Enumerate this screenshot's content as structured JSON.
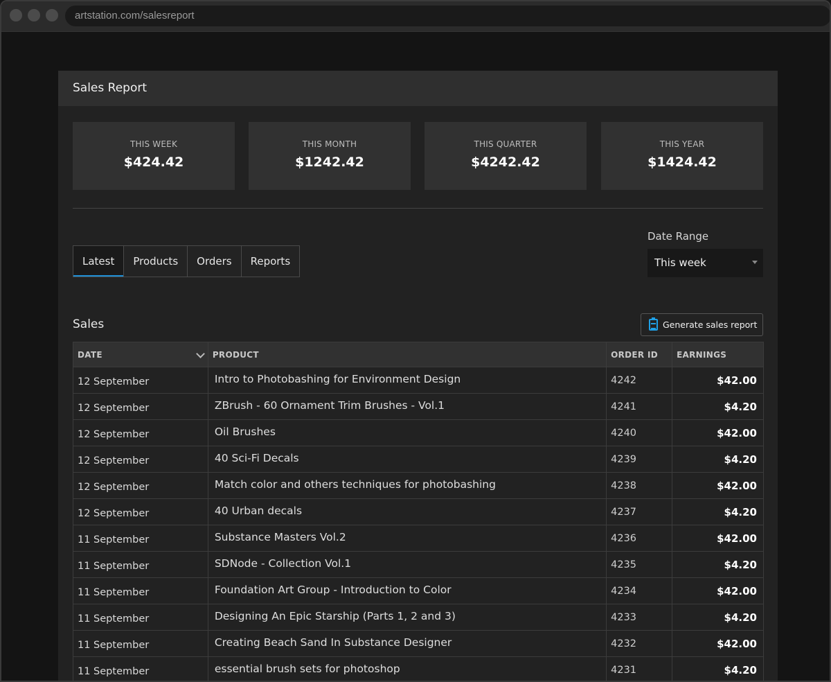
{
  "browser": {
    "url": "artstation.com/salesreport"
  },
  "header": {
    "title": "Sales Report"
  },
  "stats": [
    {
      "label": "THIS WEEK",
      "value": "$424.42"
    },
    {
      "label": "THIS MONTH",
      "value": "$1242.42"
    },
    {
      "label": "THIS QUARTER",
      "value": "$4242.42"
    },
    {
      "label": "THIS YEAR",
      "value": "$1424.42"
    }
  ],
  "tabs": [
    "Latest",
    "Products",
    "Orders",
    "Reports"
  ],
  "active_tab": "Latest",
  "date_range": {
    "label": "Date Range",
    "selected": "This week"
  },
  "sales": {
    "title": "Sales",
    "generate_button": "Generate sales report",
    "columns": [
      "DATE",
      "PRODUCT",
      "ORDER ID",
      "EARNINGS"
    ],
    "rows": [
      {
        "date": "12 September",
        "product": "Intro to Photobashing for Environment Design",
        "order_id": "4242",
        "earnings": "$42.00"
      },
      {
        "date": "12 September",
        "product": "ZBrush - 60 Ornament Trim Brushes - Vol.1",
        "order_id": "4241",
        "earnings": "$4.20"
      },
      {
        "date": "12 September",
        "product": "Oil Brushes",
        "order_id": "4240",
        "earnings": "$42.00"
      },
      {
        "date": "12 September",
        "product": "40 Sci-Fi Decals",
        "order_id": "4239",
        "earnings": "$4.20"
      },
      {
        "date": "12 September",
        "product": "Match color and others techniques for photobashing",
        "order_id": "4238",
        "earnings": "$42.00"
      },
      {
        "date": "12 September",
        "product": "40 Urban decals",
        "order_id": "4237",
        "earnings": "$4.20"
      },
      {
        "date": "11 September",
        "product": "Substance Masters Vol.2",
        "order_id": "4236",
        "earnings": "$42.00"
      },
      {
        "date": "11 September",
        "product": "SDNode - Collection Vol.1",
        "order_id": "4235",
        "earnings": "$4.20"
      },
      {
        "date": "11 September",
        "product": "Foundation Art Group - Introduction to Color",
        "order_id": "4234",
        "earnings": "$42.00"
      },
      {
        "date": "11 September",
        "product": "Designing An Epic Starship (Parts 1, 2 and 3)",
        "order_id": "4233",
        "earnings": "$4.20"
      },
      {
        "date": "11 September",
        "product": "Creating Beach Sand In Substance Designer",
        "order_id": "4232",
        "earnings": "$42.00"
      },
      {
        "date": "11 September",
        "product": " essential brush sets for photoshop",
        "order_id": "4231",
        "earnings": "$4.20"
      }
    ]
  }
}
